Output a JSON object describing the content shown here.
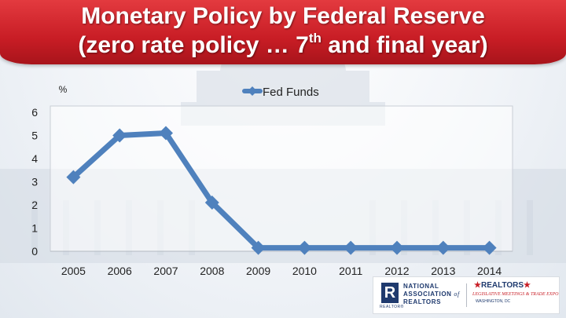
{
  "slide": {
    "title_line1": "Monetary Policy by Federal Reserve",
    "title_line2_pre": "(zero rate policy … 7",
    "title_line2_sup": "th",
    "title_line2_post": " and final year)"
  },
  "chart_data": {
    "type": "line",
    "title": "",
    "ylabel": "%",
    "xlabel": "",
    "categories": [
      "2005",
      "2006",
      "2007",
      "2008",
      "2009",
      "2010",
      "2011",
      "2012",
      "2013",
      "2014"
    ],
    "series": [
      {
        "name": "Fed Funds",
        "values": [
          3.2,
          5.0,
          5.1,
          2.1,
          0.15,
          0.15,
          0.15,
          0.15,
          0.15,
          0.15
        ]
      }
    ],
    "ylim": [
      0,
      6
    ],
    "yticks": [
      0,
      1,
      2,
      3,
      4,
      5,
      6
    ],
    "legend": "top-center",
    "grid": false,
    "colors": {
      "line": "#4f81bd",
      "title": "#ffffff",
      "banner": "#c81d25"
    }
  },
  "logo": {
    "r_mark": "R",
    "r_caption": "REALTOR®",
    "nar_line1": "NATIONAL",
    "nar_line2": "ASSOCIATION",
    "nar_of": "of",
    "nar_line3": "REALTORS",
    "realtors_word": "REALTORS",
    "conf_line": "LEGISLATIVE MEETINGS & TRADE EXPO",
    "conf_line2": "WASHINGTON, DC"
  }
}
